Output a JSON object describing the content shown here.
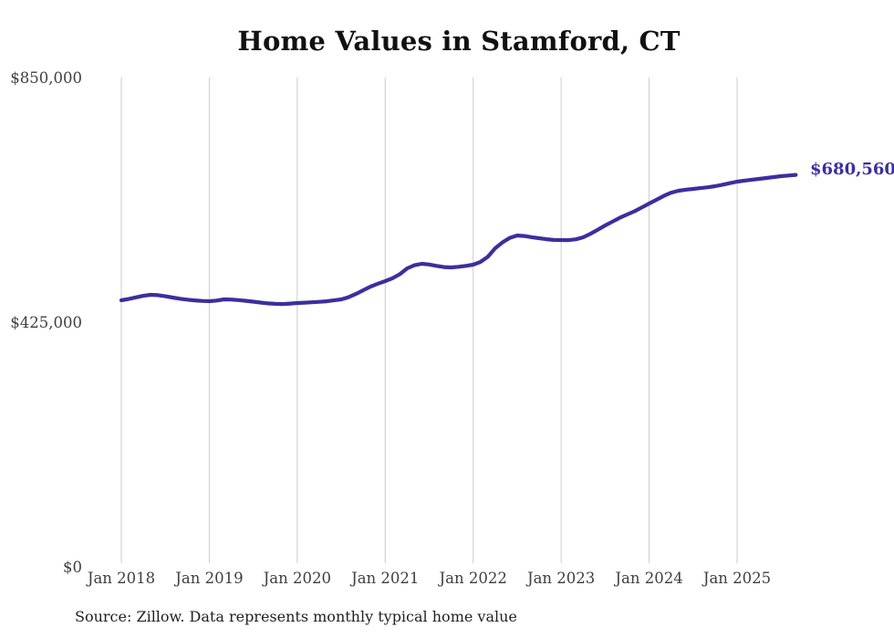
{
  "title": "Home Values in Stamford, CT",
  "end_value_label": "$680,560",
  "source_note": "Source: Zillow. Data represents monthly typical home value",
  "colors": {
    "line": "#3b2f9e",
    "grid": "#cccccc",
    "title_text": "#111111",
    "axis_text": "#3f3f3f",
    "source_text": "#1f1f1f"
  },
  "chart_data": {
    "type": "line",
    "title": "Home Values in Stamford, CT",
    "xlabel": "",
    "ylabel": "",
    "ylim": [
      0,
      850000
    ],
    "grid": "vertical-only",
    "legend": "none",
    "y_tick_labels": [
      "$850,000",
      "$425,000",
      "$0"
    ],
    "y_tick_values": [
      850000,
      425000,
      0
    ],
    "x_tick_labels": [
      "Jan 2018",
      "Jan 2019",
      "Jan 2020",
      "Jan 2021",
      "Jan 2022",
      "Jan 2023",
      "Jan 2024",
      "Jan 2025"
    ],
    "series": [
      {
        "name": "Monthly typical home value",
        "start_month": "2018-01",
        "end_month": "2025-09",
        "end_value": 680560,
        "values": [
          462300,
          464600,
          467500,
          470200,
          471800,
          471200,
          469300,
          467100,
          465100,
          463400,
          462200,
          461300,
          460700,
          461900,
          463900,
          463600,
          462600,
          461400,
          459900,
          458300,
          457000,
          456200,
          455900,
          456600,
          457500,
          458200,
          458900,
          459600,
          460600,
          462100,
          463900,
          467800,
          473300,
          479800,
          486100,
          491200,
          495700,
          500800,
          507900,
          517900,
          523400,
          525900,
          524600,
          522200,
          520200,
          519500,
          520600,
          522200,
          524300,
          529200,
          538100,
          552900,
          563200,
          571000,
          575100,
          574200,
          572100,
          570400,
          568600,
          567300,
          567200,
          567000,
          568400,
          572000,
          578100,
          585200,
          592600,
          599300,
          605900,
          611700,
          617200,
          623900,
          630800,
          637200,
          644100,
          649600,
          653000,
          654900,
          656200,
          657600,
          659000,
          660900,
          663400,
          666200,
          668900,
          670600,
          672200,
          673700,
          675300,
          676900,
          678400,
          679600,
          680560
        ]
      }
    ]
  }
}
